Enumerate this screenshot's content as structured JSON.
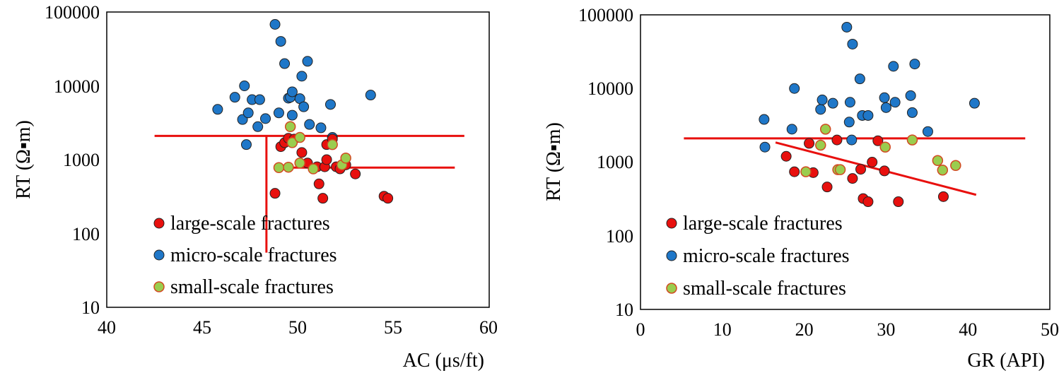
{
  "chart_data": [
    {
      "type": "scatter",
      "xlabel": "AC (μs/ft)",
      "ylabel": "RT (Ω▪m)",
      "xlim": [
        40,
        60
      ],
      "ylim": [
        10,
        100000
      ],
      "yscale": "log",
      "xticks": [
        "40",
        "45",
        "50",
        "55",
        "60"
      ],
      "yticks": [
        "10",
        "100",
        "1000",
        "10000",
        "100000"
      ],
      "legend": [
        "large-scale fractures",
        "micro-scale fractures",
        "small-scale fractures"
      ],
      "colors": {
        "large": "#e8100e",
        "micro": "#1f77c8",
        "small": "#9acd4e",
        "small_edge": "#d24a22",
        "line": "#e8100e"
      },
      "series": {
        "large": [
          [
            48.8,
            350
          ],
          [
            49.1,
            1500
          ],
          [
            49.3,
            1700
          ],
          [
            49.5,
            1950
          ],
          [
            49.8,
            1900
          ],
          [
            50.2,
            1250
          ],
          [
            50.5,
            900
          ],
          [
            51.0,
            800
          ],
          [
            51.1,
            470
          ],
          [
            51.3,
            300
          ],
          [
            51.4,
            800
          ],
          [
            51.5,
            1000
          ],
          [
            51.5,
            1600
          ],
          [
            51.8,
            1900
          ],
          [
            52.0,
            800
          ],
          [
            52.2,
            750
          ],
          [
            52.5,
            850
          ],
          [
            53.0,
            640
          ],
          [
            54.5,
            320
          ],
          [
            54.7,
            300
          ]
        ],
        "micro": [
          [
            45.8,
            4800
          ],
          [
            46.7,
            7000
          ],
          [
            47.1,
            3500
          ],
          [
            47.2,
            10000
          ],
          [
            47.3,
            1600
          ],
          [
            47.4,
            4300
          ],
          [
            47.6,
            6500
          ],
          [
            47.9,
            2800
          ],
          [
            48.0,
            6500
          ],
          [
            48.3,
            3600
          ],
          [
            48.8,
            68000
          ],
          [
            49.0,
            4300
          ],
          [
            49.1,
            40000
          ],
          [
            49.3,
            20000
          ],
          [
            49.5,
            6800
          ],
          [
            49.6,
            7000
          ],
          [
            49.7,
            8300
          ],
          [
            49.7,
            4000
          ],
          [
            50.1,
            6700
          ],
          [
            50.2,
            13500
          ],
          [
            50.3,
            5200
          ],
          [
            50.5,
            21500
          ],
          [
            50.6,
            3000
          ],
          [
            51.2,
            2700
          ],
          [
            51.7,
            5600
          ],
          [
            51.8,
            2000
          ],
          [
            53.8,
            7500
          ]
        ],
        "small": [
          [
            49.0,
            780
          ],
          [
            49.5,
            790
          ],
          [
            49.6,
            2800
          ],
          [
            49.7,
            1700
          ],
          [
            50.1,
            2000
          ],
          [
            50.1,
            900
          ],
          [
            50.8,
            750
          ],
          [
            51.8,
            1600
          ],
          [
            52.3,
            850
          ],
          [
            52.5,
            1050
          ]
        ]
      },
      "lines": [
        {
          "x": [
            42.5,
            58.7
          ],
          "y": [
            2100,
            2100
          ]
        },
        {
          "x": [
            48.8,
            58.2
          ],
          "y": [
            780,
            780
          ]
        },
        {
          "x": [
            48.35,
            48.35
          ],
          "y": [
            55,
            2100
          ]
        }
      ]
    },
    {
      "type": "scatter",
      "xlabel": "GR (API)",
      "ylabel": "RT  (Ω▪m)",
      "xlim": [
        0,
        50
      ],
      "ylim": [
        10,
        100000
      ],
      "yscale": "log",
      "xticks": [
        "0",
        "10",
        "20",
        "30",
        "40",
        "50"
      ],
      "yticks": [
        "10",
        "100",
        "1000",
        "10000",
        "100000"
      ],
      "legend": [
        "large-scale fractures",
        "micro-scale fractures",
        "small-scale fractures"
      ],
      "colors": {
        "large": "#e8100e",
        "micro": "#1f77c8",
        "small": "#9acd4e",
        "small_edge": "#d24a22",
        "line": "#e8100e"
      },
      "series": {
        "large": [
          [
            17.8,
            1200
          ],
          [
            18.8,
            740
          ],
          [
            20.6,
            1800
          ],
          [
            21.1,
            720
          ],
          [
            22.8,
            460
          ],
          [
            24.0,
            2000
          ],
          [
            25.9,
            600
          ],
          [
            26.9,
            800
          ],
          [
            27.2,
            320
          ],
          [
            27.8,
            290
          ],
          [
            28.3,
            1000
          ],
          [
            29.0,
            1950
          ],
          [
            29.8,
            760
          ],
          [
            31.5,
            290
          ],
          [
            37.0,
            340
          ]
        ],
        "micro": [
          [
            15.1,
            3800
          ],
          [
            15.2,
            1600
          ],
          [
            18.5,
            2800
          ],
          [
            18.8,
            10000
          ],
          [
            22.0,
            5200
          ],
          [
            22.2,
            7000
          ],
          [
            23.5,
            6300
          ],
          [
            25.2,
            68000
          ],
          [
            25.5,
            3500
          ],
          [
            25.6,
            6500
          ],
          [
            25.8,
            2000
          ],
          [
            25.9,
            40000
          ],
          [
            26.8,
            13500
          ],
          [
            27.1,
            4300
          ],
          [
            27.8,
            4300
          ],
          [
            29.8,
            7500
          ],
          [
            30.0,
            5500
          ],
          [
            30.9,
            20000
          ],
          [
            31.1,
            6500
          ],
          [
            33.0,
            8000
          ],
          [
            33.2,
            4700
          ],
          [
            33.5,
            21500
          ],
          [
            35.1,
            2600
          ],
          [
            40.8,
            6300
          ]
        ],
        "small": [
          [
            20.2,
            740
          ],
          [
            22.0,
            1700
          ],
          [
            22.6,
            2800
          ],
          [
            24.1,
            790
          ],
          [
            24.4,
            790
          ],
          [
            29.9,
            1600
          ],
          [
            33.2,
            2000
          ],
          [
            36.3,
            1050
          ],
          [
            36.9,
            780
          ],
          [
            38.5,
            900
          ]
        ]
      },
      "lines": [
        {
          "x": [
            5.3,
            47.0
          ],
          "y": [
            2100,
            2100
          ]
        },
        {
          "x": [
            16.5,
            41.0
          ],
          "y": [
            1850,
            360
          ]
        }
      ]
    }
  ]
}
